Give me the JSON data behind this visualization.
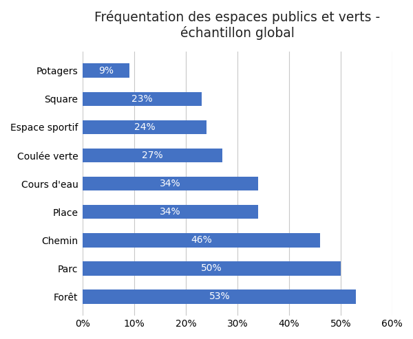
{
  "title": "Fréquentation des espaces publics et verts -\néchantillon global",
  "categories": [
    "Potagers",
    "Square",
    "Espace sportif",
    "Coulée verte",
    "Cours d'eau",
    "Place",
    "Chemin",
    "Parc",
    "Forêt"
  ],
  "values": [
    9,
    23,
    24,
    27,
    34,
    34,
    46,
    50,
    53
  ],
  "bar_color": "#4472C4",
  "label_color": "#ffffff",
  "xlim": [
    0,
    60
  ],
  "xtick_values": [
    0,
    10,
    20,
    30,
    40,
    50,
    60
  ],
  "xtick_labels": [
    "0%",
    "10%",
    "20%",
    "30%",
    "40%",
    "50%",
    "60%"
  ],
  "title_fontsize": 13.5,
  "label_fontsize": 10,
  "tick_fontsize": 10,
  "bar_height": 0.5,
  "background_color": "#ffffff",
  "grid_color": "#c8c8c8"
}
